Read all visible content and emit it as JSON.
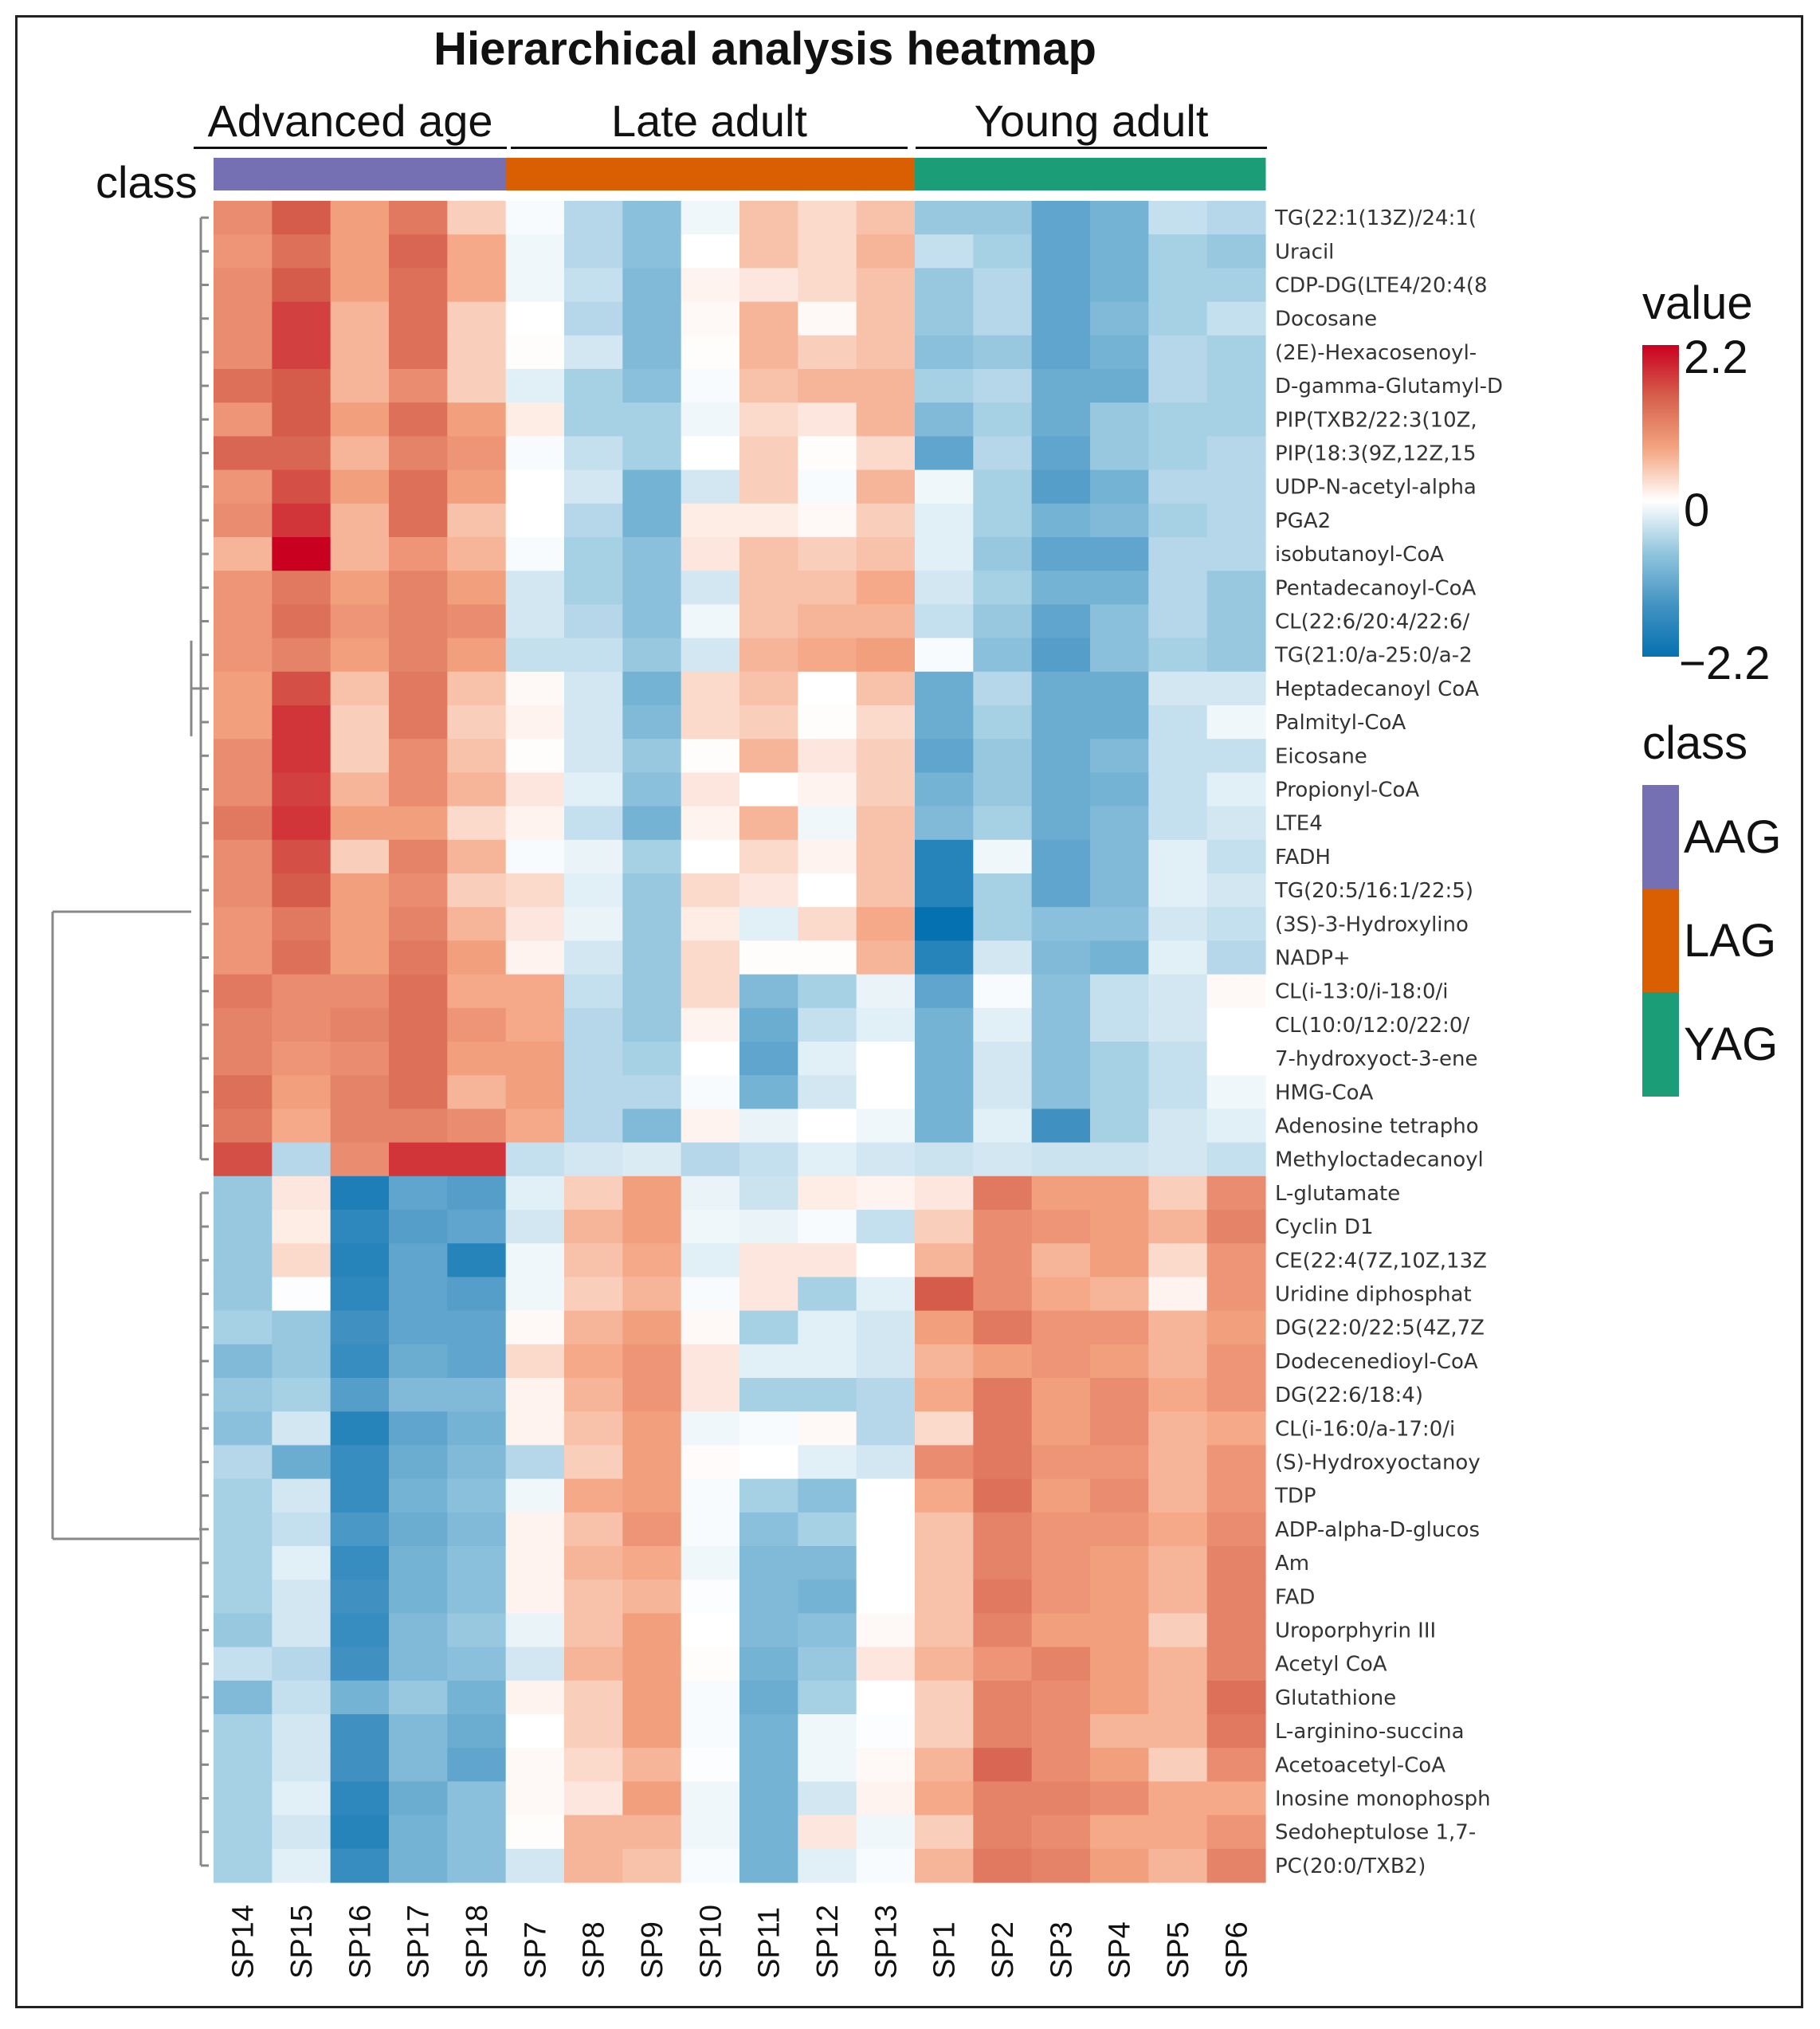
{
  "chart_data": {
    "type": "heatmap",
    "title": "Hierarchical analysis heatmap",
    "groups": [
      {
        "label": "Advanced age",
        "class": "AAG",
        "columns": [
          "SP14",
          "SP15",
          "SP16",
          "SP17",
          "SP18"
        ]
      },
      {
        "label": "Late adult",
        "class": "LAG",
        "columns": [
          "SP7",
          "SP8",
          "SP9",
          "SP10",
          "SP11",
          "SP12",
          "SP13"
        ]
      },
      {
        "label": "Young adult",
        "class": "YAG",
        "columns": [
          "SP1",
          "SP2",
          "SP3",
          "SP4",
          "SP5",
          "SP6"
        ]
      }
    ],
    "annotation_label": "class",
    "columns": [
      "SP14",
      "SP15",
      "SP16",
      "SP17",
      "SP18",
      "SP7",
      "SP8",
      "SP9",
      "SP10",
      "SP11",
      "SP12",
      "SP13",
      "SP1",
      "SP2",
      "SP3",
      "SP4",
      "SP5",
      "SP6"
    ],
    "rows": [
      "TG(22:1(13Z)/24:1(",
      "Uracil",
      "CDP-DG(LTE4/20:4(8",
      "Docosane",
      "(2E)-Hexacosenoyl-",
      "D-gamma-Glutamyl-D",
      "PIP(TXB2/22:3(10Z,",
      "PIP(18:3(9Z,12Z,15",
      "UDP-N-acetyl-alpha",
      "PGA2",
      "isobutanoyl-CoA",
      "Pentadecanoyl-CoA",
      "CL(22:6/20:4/22:6/",
      "TG(21:0/a-25:0/a-2",
      "Heptadecanoyl CoA",
      "Palmityl-CoA",
      "Eicosane",
      "Propionyl-CoA",
      "LTE4",
      "FADH",
      "TG(20:5/16:1/22:5)",
      "(3S)-3-Hydroxylino",
      "NADP+",
      "CL(i-13:0/i-18:0/i",
      "CL(10:0/12:0/22:0/",
      "7-hydroxyoct-3-ene",
      "HMG-CoA",
      "Adenosine tetrapho",
      "Methyloctadecanoyl",
      "L-glutamate",
      "Cyclin D1",
      "CE(22:4(7Z,10Z,13Z",
      "Uridine diphosphat",
      "DG(22:0/22:5(4Z,7Z",
      "Dodecenedioyl-CoA",
      "DG(22:6/18:4)",
      "CL(i-16:0/a-17:0/i",
      "(S)-Hydroxyoctanoy",
      "TDP",
      "ADP-alpha-D-glucos",
      "Am",
      "FAD",
      "Uroporphyrin III",
      "Acetyl CoA",
      "Glutathione",
      "L-arginino-succina",
      "Acetoacetyl-CoA",
      "Inosine monophosph",
      "Sedoheptulose 1,7-",
      "PC(20:0/TXB2)"
    ],
    "values": [
      [
        1.0,
        1.5,
        0.8,
        1.2,
        0.4,
        -0.05,
        -0.5,
        -0.8,
        -0.1,
        0.5,
        0.3,
        0.5,
        -0.7,
        -0.7,
        -1.2,
        -1.0,
        -0.4,
        -0.5
      ],
      [
        0.9,
        1.3,
        0.8,
        1.4,
        0.7,
        -0.1,
        -0.5,
        -0.8,
        0.0,
        0.5,
        0.3,
        0.6,
        -0.4,
        -0.6,
        -1.2,
        -1.0,
        -0.6,
        -0.7
      ],
      [
        1.0,
        1.5,
        0.8,
        1.3,
        0.7,
        -0.1,
        -0.4,
        -0.9,
        0.1,
        0.2,
        0.3,
        0.5,
        -0.7,
        -0.5,
        -1.2,
        -1.0,
        -0.6,
        -0.6
      ],
      [
        1.0,
        1.7,
        0.6,
        1.3,
        0.4,
        0.0,
        -0.5,
        -0.9,
        0.05,
        0.6,
        0.05,
        0.5,
        -0.7,
        -0.5,
        -1.2,
        -0.9,
        -0.6,
        -0.4
      ],
      [
        1.0,
        1.7,
        0.6,
        1.3,
        0.4,
        0.02,
        -0.3,
        -0.9,
        0.02,
        0.6,
        0.4,
        0.5,
        -0.8,
        -0.7,
        -1.2,
        -1.0,
        -0.5,
        -0.6
      ],
      [
        1.3,
        1.5,
        0.6,
        1.0,
        0.4,
        -0.2,
        -0.6,
        -0.8,
        -0.05,
        0.5,
        0.6,
        0.6,
        -0.6,
        -0.5,
        -1.1,
        -1.1,
        -0.5,
        -0.6
      ],
      [
        0.9,
        1.5,
        0.8,
        1.3,
        0.8,
        0.15,
        -0.6,
        -0.6,
        -0.1,
        0.3,
        0.2,
        0.6,
        -0.9,
        -0.6,
        -1.1,
        -0.7,
        -0.6,
        -0.6
      ],
      [
        1.4,
        1.4,
        0.6,
        1.1,
        0.9,
        -0.05,
        -0.4,
        -0.6,
        0.0,
        0.4,
        0.02,
        0.3,
        -1.2,
        -0.5,
        -1.2,
        -0.7,
        -0.6,
        -0.5
      ],
      [
        0.9,
        1.6,
        0.8,
        1.3,
        0.8,
        0.0,
        -0.3,
        -1.0,
        -0.3,
        0.4,
        -0.05,
        0.6,
        -0.1,
        -0.6,
        -1.3,
        -1.0,
        -0.5,
        -0.5
      ],
      [
        1.0,
        1.8,
        0.6,
        1.3,
        0.5,
        0.0,
        -0.5,
        -1.0,
        0.15,
        0.15,
        0.05,
        0.4,
        -0.2,
        -0.6,
        -1.0,
        -0.9,
        -0.6,
        -0.5
      ],
      [
        0.6,
        2.2,
        0.6,
        0.9,
        0.6,
        -0.05,
        -0.6,
        -0.8,
        0.2,
        0.5,
        0.4,
        0.5,
        -0.2,
        -0.7,
        -1.2,
        -1.2,
        -0.5,
        -0.5
      ],
      [
        0.9,
        1.2,
        0.8,
        1.1,
        0.8,
        -0.3,
        -0.6,
        -0.8,
        -0.3,
        0.5,
        0.5,
        0.7,
        -0.3,
        -0.6,
        -1.0,
        -1.0,
        -0.5,
        -0.7
      ],
      [
        0.9,
        1.3,
        0.9,
        1.1,
        1.0,
        -0.3,
        -0.5,
        -0.8,
        -0.1,
        0.5,
        0.6,
        0.6,
        -0.4,
        -0.7,
        -1.2,
        -0.8,
        -0.5,
        -0.7
      ],
      [
        0.9,
        1.1,
        0.8,
        1.1,
        0.8,
        -0.4,
        -0.4,
        -0.7,
        -0.3,
        0.6,
        0.7,
        0.8,
        -0.05,
        -0.8,
        -1.3,
        -0.8,
        -0.6,
        -0.7
      ],
      [
        0.8,
        1.6,
        0.5,
        1.2,
        0.5,
        0.05,
        -0.3,
        -1.0,
        0.3,
        0.5,
        0.0,
        0.5,
        -1.1,
        -0.5,
        -1.1,
        -1.1,
        -0.3,
        -0.3
      ],
      [
        0.8,
        1.8,
        0.4,
        1.2,
        0.4,
        0.1,
        -0.3,
        -0.9,
        0.3,
        0.4,
        0.02,
        0.3,
        -1.1,
        -0.6,
        -1.1,
        -1.1,
        -0.4,
        -0.1
      ],
      [
        1.0,
        1.8,
        0.4,
        1.0,
        0.5,
        0.02,
        -0.3,
        -0.7,
        0.02,
        0.6,
        0.2,
        0.4,
        -1.2,
        -0.7,
        -1.1,
        -0.9,
        -0.4,
        -0.4
      ],
      [
        1.0,
        1.7,
        0.6,
        1.0,
        0.6,
        0.2,
        -0.2,
        -0.8,
        0.2,
        0.0,
        0.1,
        0.4,
        -1.0,
        -0.7,
        -1.1,
        -1.0,
        -0.4,
        -0.2
      ],
      [
        1.2,
        1.8,
        0.8,
        0.8,
        0.3,
        0.1,
        -0.4,
        -1.0,
        0.1,
        0.6,
        -0.1,
        0.5,
        -0.9,
        -0.6,
        -1.1,
        -0.9,
        -0.4,
        -0.3
      ],
      [
        1.0,
        1.6,
        0.4,
        1.1,
        0.6,
        -0.05,
        -0.15,
        -0.6,
        0.0,
        0.3,
        0.1,
        0.5,
        -1.8,
        -0.1,
        -1.2,
        -0.9,
        -0.2,
        -0.4
      ],
      [
        1.0,
        1.5,
        0.8,
        1.0,
        0.4,
        0.3,
        -0.2,
        -0.7,
        0.3,
        0.2,
        0.0,
        0.5,
        -1.8,
        -0.6,
        -1.2,
        -0.9,
        -0.2,
        -0.3
      ],
      [
        0.9,
        1.2,
        0.8,
        1.1,
        0.6,
        0.2,
        -0.15,
        -0.7,
        0.15,
        -0.2,
        0.3,
        0.7,
        -2.2,
        -0.6,
        -0.8,
        -0.8,
        -0.3,
        -0.4
      ],
      [
        0.9,
        1.3,
        0.8,
        1.2,
        0.8,
        0.1,
        -0.3,
        -0.7,
        0.3,
        0.02,
        0.02,
        0.6,
        -1.8,
        -0.3,
        -0.9,
        -1.0,
        -0.2,
        -0.5
      ],
      [
        1.2,
        1.0,
        1.0,
        1.3,
        0.7,
        0.7,
        -0.4,
        -0.7,
        0.3,
        -0.9,
        -0.6,
        -0.15,
        -1.2,
        -0.05,
        -0.8,
        -0.4,
        -0.3,
        0.05
      ],
      [
        1.1,
        1.0,
        1.1,
        1.3,
        0.9,
        0.7,
        -0.5,
        -0.7,
        0.1,
        -1.1,
        -0.4,
        -0.2,
        -1.0,
        -0.2,
        -0.8,
        -0.4,
        -0.3,
        0.0
      ],
      [
        1.1,
        0.9,
        1.0,
        1.3,
        0.8,
        0.8,
        -0.5,
        -0.6,
        0.0,
        -1.2,
        -0.2,
        0.0,
        -1.0,
        -0.3,
        -0.8,
        -0.6,
        -0.4,
        0.0
      ],
      [
        1.3,
        0.8,
        1.1,
        1.3,
        0.6,
        0.8,
        -0.5,
        -0.5,
        -0.05,
        -1.0,
        -0.3,
        0.0,
        -1.0,
        -0.3,
        -0.8,
        -0.6,
        -0.4,
        -0.1
      ],
      [
        1.2,
        0.7,
        1.1,
        1.1,
        1.0,
        0.7,
        -0.5,
        -0.9,
        0.1,
        -0.15,
        0.0,
        -0.1,
        -1.0,
        -0.2,
        -1.5,
        -0.6,
        -0.3,
        -0.2
      ],
      [
        1.6,
        -0.5,
        1.0,
        1.8,
        1.8,
        -0.4,
        -0.3,
        -0.25,
        -0.5,
        -0.4,
        -0.2,
        -0.3,
        -0.35,
        -0.3,
        -0.35,
        -0.35,
        -0.3,
        -0.4
      ],
      [
        -0.7,
        0.2,
        -1.9,
        -1.2,
        -1.3,
        -0.2,
        0.4,
        0.8,
        -0.15,
        -0.35,
        0.15,
        0.1,
        0.2,
        1.2,
        0.8,
        0.8,
        0.4,
        1.0
      ],
      [
        -0.7,
        0.15,
        -1.7,
        -1.3,
        -1.2,
        -0.3,
        0.6,
        0.8,
        -0.1,
        -0.15,
        -0.05,
        -0.4,
        0.4,
        1.0,
        0.9,
        0.8,
        0.6,
        1.1
      ],
      [
        -0.7,
        0.3,
        -1.8,
        -1.2,
        -1.8,
        -0.1,
        0.5,
        0.7,
        -0.2,
        0.2,
        0.2,
        0.0,
        0.6,
        1.0,
        0.6,
        0.8,
        0.3,
        0.9
      ],
      [
        -0.7,
        -0.02,
        -1.7,
        -1.2,
        -1.3,
        -0.1,
        0.4,
        0.6,
        -0.05,
        0.2,
        -0.6,
        -0.2,
        1.5,
        1.0,
        0.7,
        0.6,
        0.1,
        0.9
      ],
      [
        -0.6,
        -0.7,
        -1.5,
        -1.2,
        -1.2,
        0.05,
        0.6,
        0.8,
        0.05,
        -0.6,
        -0.2,
        -0.3,
        0.8,
        1.2,
        0.9,
        0.9,
        0.6,
        0.8
      ],
      [
        -0.9,
        -0.7,
        -1.6,
        -1.1,
        -1.2,
        0.3,
        0.7,
        0.9,
        0.2,
        -0.2,
        -0.2,
        -0.3,
        0.6,
        0.8,
        0.9,
        0.8,
        0.6,
        0.9
      ],
      [
        -0.7,
        -0.6,
        -1.3,
        -0.9,
        -0.9,
        0.1,
        0.6,
        0.9,
        0.2,
        -0.6,
        -0.6,
        -0.5,
        0.7,
        1.2,
        0.8,
        1.0,
        0.7,
        0.9
      ],
      [
        -0.8,
        -0.3,
        -1.8,
        -1.2,
        -1.0,
        0.1,
        0.5,
        0.8,
        -0.1,
        -0.05,
        0.05,
        -0.5,
        0.3,
        1.2,
        0.8,
        1.0,
        0.6,
        0.7
      ],
      [
        -0.5,
        -1.1,
        -1.6,
        -1.1,
        -0.9,
        -0.5,
        0.4,
        0.8,
        0.03,
        0.0,
        -0.2,
        -0.3,
        1.0,
        1.2,
        0.9,
        0.9,
        0.6,
        0.9
      ],
      [
        -0.6,
        -0.3,
        -1.6,
        -1.0,
        -0.8,
        -0.1,
        0.7,
        0.8,
        -0.05,
        -0.6,
        -0.8,
        0.0,
        0.7,
        1.3,
        0.8,
        1.0,
        0.6,
        0.9
      ],
      [
        -0.6,
        -0.4,
        -1.4,
        -1.1,
        -0.9,
        0.1,
        0.5,
        0.9,
        -0.05,
        -0.8,
        -0.6,
        0.0,
        0.5,
        1.1,
        0.9,
        0.9,
        0.7,
        1.0
      ],
      [
        -0.6,
        -0.2,
        -1.6,
        -1.0,
        -0.8,
        0.1,
        0.6,
        0.7,
        -0.1,
        -0.9,
        -0.9,
        0.0,
        0.5,
        1.1,
        0.9,
        0.8,
        0.6,
        1.1
      ],
      [
        -0.6,
        -0.3,
        -1.5,
        -1.0,
        -0.8,
        0.1,
        0.5,
        0.6,
        -0.02,
        -0.9,
        -1.0,
        0.0,
        0.5,
        1.2,
        0.9,
        0.8,
        0.6,
        1.1
      ],
      [
        -0.7,
        -0.3,
        -1.6,
        -0.9,
        -0.7,
        -0.15,
        0.5,
        0.8,
        0.0,
        -0.9,
        -0.8,
        0.05,
        0.5,
        1.1,
        0.8,
        0.8,
        0.4,
        1.1
      ],
      [
        -0.4,
        -0.5,
        -1.5,
        -0.9,
        -0.8,
        -0.3,
        0.6,
        0.8,
        0.02,
        -1.0,
        -0.7,
        0.2,
        0.6,
        0.9,
        1.1,
        0.8,
        0.6,
        1.1
      ],
      [
        -0.9,
        -0.4,
        -1.0,
        -0.7,
        -1.0,
        0.1,
        0.4,
        0.8,
        -0.05,
        -1.1,
        -0.6,
        0.0,
        0.4,
        1.1,
        1.0,
        0.8,
        0.6,
        1.3
      ],
      [
        -0.6,
        -0.3,
        -1.5,
        -0.9,
        -1.1,
        0.0,
        0.4,
        0.8,
        -0.05,
        -1.0,
        -0.1,
        -0.02,
        0.4,
        1.1,
        1.0,
        0.6,
        0.6,
        1.2
      ],
      [
        -0.6,
        -0.3,
        -1.5,
        -0.9,
        -1.2,
        0.05,
        0.3,
        0.6,
        -0.02,
        -1.0,
        -0.1,
        0.05,
        0.6,
        1.4,
        1.0,
        0.8,
        0.4,
        1.0
      ],
      [
        -0.6,
        -0.2,
        -1.7,
        -1.1,
        -0.8,
        0.05,
        0.2,
        0.8,
        -0.1,
        -1.0,
        -0.3,
        0.1,
        0.7,
        1.1,
        1.1,
        1.0,
        0.7,
        0.7
      ],
      [
        -0.6,
        -0.3,
        -1.8,
        -1.0,
        -0.8,
        0.02,
        0.6,
        0.6,
        -0.1,
        -1.0,
        0.2,
        -0.1,
        0.4,
        1.1,
        1.0,
        0.7,
        0.7,
        0.9
      ],
      [
        -0.6,
        -0.2,
        -1.6,
        -1.0,
        -0.8,
        -0.3,
        0.6,
        0.5,
        -0.05,
        -1.0,
        -0.2,
        -0.05,
        0.6,
        1.2,
        1.1,
        0.8,
        0.6,
        1.1
      ]
    ],
    "colorscale": {
      "title": "value",
      "min": -2.2,
      "max": 2.2,
      "ticks": [
        "2.2",
        "0",
        "−2.2"
      ],
      "colors": [
        "#0571b0",
        "#4393c3",
        "#92c5de",
        "#ffffff",
        "#f4a582",
        "#d6604d",
        "#ca0020"
      ]
    },
    "class_legend": {
      "title": "class",
      "items": [
        {
          "label": "AAG",
          "color": "#7570b3"
        },
        {
          "label": "LAG",
          "color": "#d95f02"
        },
        {
          "label": "YAG",
          "color": "#1b9e77"
        }
      ]
    },
    "row_clusters": 2
  }
}
